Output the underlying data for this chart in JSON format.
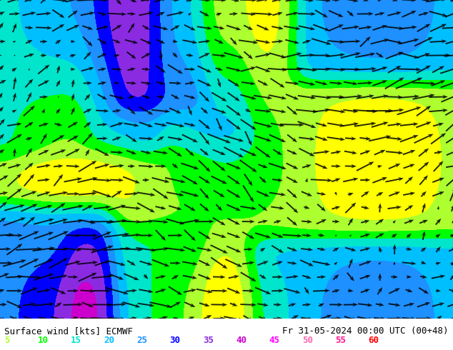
{
  "title_left": "Surface wind [kts] ECMWF",
  "title_right": "Fr 31-05-2024 00:00 UTC (00+48)",
  "legend_values": [
    5,
    10,
    15,
    20,
    25,
    30,
    35,
    40,
    45,
    50,
    55,
    60
  ],
  "legend_colors": [
    "#adff2f",
    "#00ff00",
    "#00e5cc",
    "#00bfff",
    "#1e90ff",
    "#0000ff",
    "#8a2be2",
    "#cc00cc",
    "#ff00ff",
    "#ff69b4",
    "#ff1493",
    "#ff0000"
  ],
  "colormap_levels": [
    5,
    10,
    15,
    20,
    25,
    30,
    35,
    40,
    45,
    50,
    55,
    60
  ],
  "colormap_colors": [
    "#ffff00",
    "#adff2f",
    "#00ff00",
    "#00e5cc",
    "#00bfff",
    "#1e90ff",
    "#0000ff",
    "#8a2be2",
    "#cc00cc",
    "#ff00ff",
    "#ff69b4",
    "#ff1493"
  ],
  "background_color": "#ffff00",
  "fig_width": 6.34,
  "fig_height": 4.9,
  "dpi": 100,
  "seed": 42
}
